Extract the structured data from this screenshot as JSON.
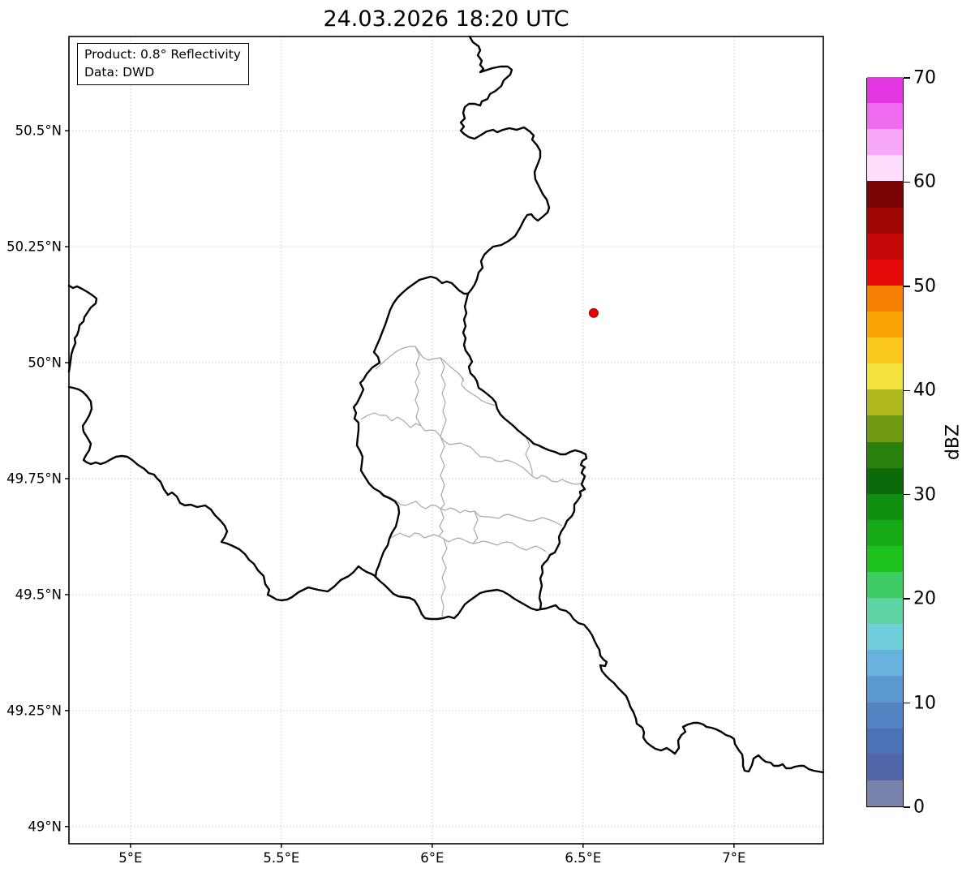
{
  "title": "24.03.2026 18:20 UTC",
  "info_box": {
    "line1": "Product: 0.8° Reflectivity",
    "line2": "Data: DWD"
  },
  "axes": {
    "x_ticks": [
      {
        "lon": 5.0,
        "label": "5°E"
      },
      {
        "lon": 5.5,
        "label": "5.5°E"
      },
      {
        "lon": 6.0,
        "label": "6°E"
      },
      {
        "lon": 6.5,
        "label": "6.5°E"
      },
      {
        "lon": 7.0,
        "label": "7°E"
      }
    ],
    "y_ticks": [
      {
        "lat": 50.5,
        "label": "50.5°N"
      },
      {
        "lat": 50.25,
        "label": "50.25°N"
      },
      {
        "lat": 50.0,
        "label": "50°N"
      },
      {
        "lat": 49.75,
        "label": "49.75°N"
      },
      {
        "lat": 49.5,
        "label": "49.5°N"
      },
      {
        "lat": 49.25,
        "label": "49.25°N"
      },
      {
        "lat": 49.0,
        "label": "49°N"
      }
    ],
    "lon_min": 4.796,
    "lon_max": 7.296,
    "lat_min": 48.963,
    "lat_max": 50.703,
    "grid_color": "#cccccc"
  },
  "colorbar": {
    "label": "dBZ",
    "min": 0,
    "max": 70,
    "tick_values": [
      0,
      10,
      20,
      30,
      40,
      50,
      60,
      70
    ],
    "colors": [
      "#7783ab",
      "#5166a8",
      "#4b71b7",
      "#5284c4",
      "#5d99d1",
      "#68b3dd",
      "#70cfdb",
      "#5ed3a4",
      "#3ecb63",
      "#1cc21c",
      "#16a916",
      "#108e10",
      "#0b6b0b",
      "#29800d",
      "#6f9a12",
      "#b0b81e",
      "#f2e23b",
      "#fbc81e",
      "#fba204",
      "#f58004",
      "#e60909",
      "#c40808",
      "#9e0606",
      "#7a0404",
      "#fcdefc",
      "#f8a8f8",
      "#ef6bef",
      "#e136e1"
    ]
  },
  "radar_point": {
    "lon": 6.535,
    "lat": 50.107,
    "fill": "#e60000",
    "edge": "#990000",
    "radius": 5.5
  },
  "map": {
    "border_color": "#000000",
    "admin_color": "#a8a8a8",
    "national_borders": [
      [
        579,
        45,
        583,
        52,
        590,
        57,
        592,
        62,
        589,
        68,
        594,
        75,
        592,
        80,
        596,
        85,
        592,
        89,
        598,
        87,
        607,
        84,
        617,
        82,
        626,
        82,
        631,
        86,
        629,
        92,
        621,
        99,
        618,
        106,
        611,
        112,
        604,
        116,
        601,
        122,
        594,
        125,
        592,
        130,
        585,
        128,
        578,
        128,
        573,
        132,
        571,
        139,
        573,
        146,
        568,
        151,
        572,
        156,
        568,
        161,
        572,
        165,
        578,
        169,
        585,
        171,
        592,
        167,
        600,
        162,
        608,
        160,
        613,
        163,
        620,
        160,
        628,
        158,
        637,
        160,
        646,
        157,
        653,
        162,
        658,
        167,
        656,
        172,
        662,
        179,
        666,
        186,
        666,
        194,
        663,
        202,
        659,
        212,
        660,
        221,
        664,
        229,
        669,
        239,
        674,
        246,
        677,
        256,
        675,
        262,
        668,
        268,
        663,
        272,
        658,
        268,
        655,
        264,
        650,
        265,
        646,
        271,
        641,
        281,
        635,
        291,
        627,
        297,
        618,
        302,
        608,
        304,
        602,
        309,
        597,
        314,
        593,
        322,
        595,
        330,
        590,
        336,
        588,
        344,
        585,
        351,
        581,
        357,
        577,
        362
      ],
      [
        517,
        345,
        524,
        343,
        531,
        341,
        538,
        343,
        545,
        349,
        551,
        347,
        557,
        349,
        561,
        353,
        566,
        358,
        572,
        362,
        577,
        362
      ],
      [
        517,
        345,
        510,
        350,
        503,
        355,
        496,
        361,
        490,
        367,
        485,
        374,
        481,
        382,
        478,
        391,
        475,
        400,
        471,
        410,
        468,
        418,
        464,
        427,
        461,
        434,
        466,
        440,
        468,
        447,
        459,
        453,
        452,
        461,
        448,
        468,
        444,
        472,
        448,
        480,
        444,
        489,
        440,
        497,
        436,
        502,
        439,
        509,
        437,
        516,
        442,
        521,
        442,
        530,
        441,
        539,
        440,
        549,
        444,
        556,
        447,
        563,
        446,
        572,
        445,
        580,
        450,
        588,
        455,
        596,
        461,
        602,
        468,
        606,
        473,
        611,
        480,
        614,
        487,
        618,
        491,
        624,
        492,
        632,
        490,
        641,
        488,
        649,
        483,
        657,
        480,
        664,
        478,
        672,
        473,
        680,
        470,
        688,
        467,
        697,
        464,
        704,
        463,
        711
      ],
      [
        463,
        711,
        468,
        716,
        474,
        721,
        480,
        727,
        485,
        732,
        491,
        735,
        498,
        736,
        505,
        737,
        511,
        740,
        516,
        748,
        520,
        757,
        524,
        762,
        531,
        763,
        539,
        763,
        546,
        762,
        553,
        760,
        560,
        762,
        565,
        757,
        569,
        751,
        573,
        745,
        578,
        741,
        585,
        736,
        592,
        731,
        599,
        729,
        606,
        728,
        613,
        727,
        620,
        729,
        627,
        733,
        634,
        738,
        641,
        742,
        648,
        746,
        655,
        750,
        662,
        752,
        666,
        751
      ],
      [
        666,
        751,
        667,
        744,
        665,
        737,
        666,
        730,
        668,
        722,
        666,
        713,
        669,
        706,
        668,
        698,
        671,
        694,
        675,
        690,
        678,
        684,
        684,
        681,
        687,
        675,
        690,
        669,
        689,
        662,
        692,
        655,
        696,
        649,
        699,
        642,
        705,
        636,
        708,
        630,
        708,
        622,
        712,
        617,
        716,
        611,
        715,
        606,
        721,
        603,
        717,
        597,
        719,
        592,
        721,
        587,
        717,
        583,
        719,
        578,
        721,
        576,
        716,
        573,
        718,
        568,
        723,
        565,
        722,
        560,
        716,
        557,
        709,
        555,
        703,
        557,
        697,
        560,
        691,
        560,
        684,
        557,
        677,
        555,
        670,
        552,
        664,
        549,
        658,
        547,
        653,
        542,
        648,
        538,
        643,
        534,
        638,
        530,
        633,
        525,
        627,
        520,
        622,
        516,
        617,
        511,
        613,
        504,
        611,
        496,
        607,
        491,
        601,
        486,
        596,
        482,
        590,
        478,
        588,
        470,
        585,
        465,
        580,
        460,
        578,
        452,
        582,
        446,
        579,
        439,
        574,
        432,
        572,
        425,
        574,
        417,
        571,
        410,
        574,
        402,
        572,
        394,
        575,
        386,
        573,
        378,
        575,
        370,
        577,
        362
      ],
      [
        85,
        352,
        90,
        355,
        95,
        353,
        101,
        356,
        108,
        360,
        114,
        364,
        119,
        368,
        118,
        374,
        112,
        379,
        108,
        385,
        104,
        391,
        103,
        396,
        98,
        401,
        97,
        407,
        95,
        413,
        92,
        417,
        93,
        423,
        90,
        430,
        88,
        437,
        87,
        445,
        86,
        452,
        85,
        458
      ],
      [
        85,
        477,
        90,
        478,
        97,
        480,
        102,
        483,
        107,
        488,
        112,
        495,
        113,
        504,
        110,
        512,
        106,
        519,
        102,
        525,
        103,
        532,
        108,
        540,
        112,
        547,
        110,
        555,
        106,
        561,
        103,
        567,
        107,
        570,
        112,
        572,
        118,
        570,
        124,
        572,
        130,
        570,
        137,
        566,
        143,
        563,
        150,
        562,
        157,
        563,
        163,
        567,
        170,
        573,
        178,
        578,
        183,
        583,
        190,
        585,
        193,
        589,
        198,
        594,
        202,
        603,
        207,
        610,
        212,
        607,
        218,
        612,
        222,
        620,
        228,
        623,
        235,
        622,
        243,
        625,
        253,
        623,
        260,
        628,
        265,
        635,
        272,
        642,
        277,
        648,
        280,
        655,
        277,
        662,
        273,
        668,
        280,
        670,
        287,
        673,
        295,
        677,
        302,
        683,
        307,
        690,
        313,
        695,
        318,
        703,
        325,
        710,
        327,
        720,
        332,
        727,
        330,
        733,
        336,
        736,
        341,
        739,
        347,
        740,
        354,
        739,
        360,
        736,
        368,
        730,
        380,
        724,
        392,
        727,
        404,
        729,
        412,
        723,
        420,
        715,
        430,
        710,
        436,
        705,
        442,
        698,
        447,
        702,
        452,
        705,
        457,
        707,
        461,
        709,
        463,
        711
      ],
      [
        666,
        751,
        673,
        750,
        679,
        748,
        685,
        746,
        690,
        751,
        698,
        753,
        703,
        757,
        707,
        763,
        713,
        768,
        720,
        770,
        726,
        777,
        730,
        783,
        733,
        790,
        736,
        796,
        739,
        801,
        740,
        808,
        744,
        813,
        748,
        816,
        746,
        821,
        740,
        820,
        742,
        827,
        747,
        833,
        751,
        837,
        757,
        842,
        762,
        848,
        766,
        852,
        772,
        858,
        775,
        865,
        777,
        871,
        781,
        878,
        784,
        886,
        785,
        892,
        792,
        897,
        794,
        903,
        793,
        909,
        797,
        915,
        802,
        919,
        808,
        923,
        815,
        925,
        822,
        922,
        828,
        926,
        832,
        929,
        837,
        922,
        836,
        913,
        840,
        906,
        845,
        902,
        842,
        896,
        848,
        893,
        855,
        891,
        861,
        891,
        867,
        893,
        871,
        896,
        877,
        897,
        883,
        899,
        889,
        902,
        895,
        906,
        901,
        908,
        905,
        911,
        906,
        917,
        911,
        925,
        915,
        930,
        916,
        937,
        916,
        944,
        918,
        950,
        923,
        951,
        927,
        943,
        929,
        935,
        935,
        931,
        940,
        936,
        944,
        939,
        950,
        940,
        954,
        944,
        960,
        944,
        965,
        942,
        969,
        947,
        975,
        947,
        980,
        945,
        986,
        944,
        991,
        944,
        997,
        948,
        1003,
        950,
        1009,
        951,
        1015,
        952
      ]
    ],
    "admin_borders": [
      [
        463,
        455,
        472,
        447,
        480,
        440,
        489,
        433,
        497,
        429,
        506,
        427,
        512,
        427,
        516,
        433,
        521,
        440,
        528,
        444,
        536,
        442,
        543,
        441,
        549,
        446,
        554,
        451,
        560,
        456,
        565,
        460,
        569,
        465,
        572,
        470
      ],
      [
        565,
        460,
        571,
        467,
        569,
        474,
        574,
        480,
        581,
        485,
        588,
        489,
        594,
        494,
        601,
        497,
        608,
        499,
        613,
        500
      ],
      [
        445,
        517,
        453,
        512,
        461,
        509,
        469,
        512,
        476,
        512,
        483,
        519,
        490,
        514,
        498,
        519,
        506,
        527,
        513,
        522,
        519,
        525,
        524,
        531,
        531,
        530,
        537,
        531,
        543,
        538,
        548,
        544,
        554,
        548,
        561,
        547,
        568,
        546,
        574,
        549,
        580,
        551,
        586,
        557,
        592,
        563,
        598,
        563,
        605,
        564,
        611,
        568,
        618,
        569,
        624,
        567,
        631,
        569,
        637,
        572
      ],
      [
        637,
        572,
        644,
        576,
        650,
        581,
        656,
        587,
        662,
        590,
        668,
        586,
        674,
        588,
        680,
        593,
        687,
        594,
        693,
        591,
        699,
        594,
        705,
        596,
        711,
        597,
        716,
        596
      ],
      [
        461,
        602,
        468,
        605,
        474,
        610,
        481,
        613,
        488,
        617,
        494,
        622,
        500,
        623,
        507,
        620,
        513,
        618,
        519,
        624,
        525,
        627,
        531,
        623,
        537,
        623,
        543,
        627,
        549,
        629,
        555,
        626,
        561,
        628,
        567,
        632,
        573,
        629,
        579,
        631,
        585,
        630,
        591,
        636,
        597,
        637,
        603,
        637,
        609,
        638,
        615,
        639,
        621,
        635,
        627,
        634,
        633,
        636,
        639,
        638,
        645,
        640,
        651,
        642,
        657,
        642,
        663,
        640,
        669,
        638,
        675,
        640,
        681,
        642,
        687,
        645,
        693,
        648
      ],
      [
        480,
        664,
        487,
        660,
        493,
        657,
        499,
        660,
        505,
        662,
        511,
        657,
        517,
        658,
        523,
        663,
        529,
        661,
        535,
        659,
        541,
        661,
        547,
        664,
        553,
        668,
        559,
        665,
        565,
        663,
        571,
        665,
        577,
        668,
        583,
        670,
        589,
        669,
        595,
        667,
        601,
        668,
        607,
        670,
        613,
        672,
        619,
        669,
        625,
        668,
        631,
        669,
        637,
        673,
        643,
        676,
        649,
        678,
        655,
        675,
        661,
        673,
        667,
        676,
        673,
        680
      ],
      [
        512,
        427,
        517,
        438,
        513,
        449,
        517,
        460,
        512,
        471,
        516,
        482,
        512,
        493,
        516,
        504,
        513,
        514,
        519,
        525
      ],
      [
        543,
        441,
        548,
        452,
        544,
        463,
        549,
        474,
        545,
        485,
        549,
        496,
        546,
        507,
        550,
        518,
        546,
        529,
        543,
        538
      ],
      [
        543,
        538,
        548,
        550,
        543,
        562,
        548,
        574,
        543,
        586,
        548,
        598,
        544,
        610,
        548,
        622,
        543,
        627
      ],
      [
        585,
        630,
        589,
        641,
        584,
        652,
        589,
        663,
        583,
        670
      ],
      [
        543,
        627,
        547,
        638,
        542,
        649,
        546,
        655,
        541,
        661
      ],
      [
        547,
        664,
        551,
        676,
        545,
        688,
        550,
        700,
        545,
        712,
        549,
        724,
        544,
        736,
        547,
        748,
        545,
        758,
        546,
        762
      ],
      [
        648,
        538,
        653,
        549,
        648,
        560,
        653,
        570,
        656,
        580,
        656,
        587
      ]
    ]
  }
}
